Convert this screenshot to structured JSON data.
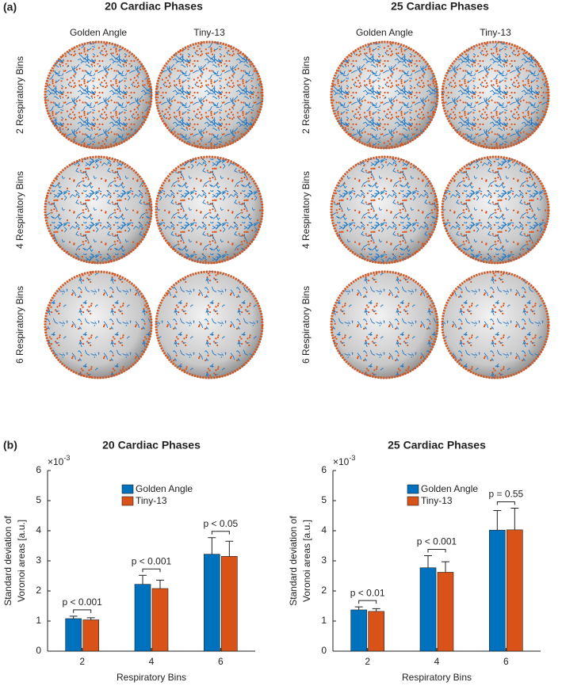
{
  "panel_a": {
    "label": "(a)",
    "groups": [
      {
        "title": "20 Cardiac Phases",
        "columns": [
          "Golden Angle",
          "Tiny-13"
        ],
        "rows": [
          "2 Respiratory Bins",
          "4 Respiratory Bins",
          "6 Respiratory Bins"
        ]
      },
      {
        "title": "25 Cardiac Phases",
        "columns": [
          "Golden Angle",
          "Tiny-13"
        ],
        "rows": [
          "2 Respiratory Bins",
          "4 Respiratory Bins",
          "6 Respiratory Bins"
        ]
      }
    ]
  },
  "panel_b": {
    "label": "(b)"
  },
  "chart_data": [
    {
      "type": "bar",
      "title": "20 Cardiac Phases",
      "xlabel": "Respiratory Bins",
      "ylabel": [
        "Standard deviation of",
        "Voronoi areas [a.u.]"
      ],
      "y_scale_base": "×10",
      "y_scale_exponent": "-3",
      "categories": [
        "2",
        "4",
        "6"
      ],
      "series": [
        {
          "name": "Golden Angle",
          "color": "#0072bd",
          "values": [
            1.08,
            2.22,
            3.22
          ],
          "errors": [
            0.08,
            0.3,
            0.55
          ]
        },
        {
          "name": "Tiny-13",
          "color": "#d95319",
          "values": [
            1.04,
            2.08,
            3.15
          ],
          "errors": [
            0.07,
            0.28,
            0.5
          ]
        }
      ],
      "annotations": [
        "p < 0.001",
        "p < 0.001",
        "p < 0.05"
      ],
      "ylim": [
        0,
        6
      ],
      "yticks": [
        0,
        1,
        2,
        3,
        4,
        5,
        6
      ],
      "legend": "upper center"
    },
    {
      "type": "bar",
      "title": "25 Cardiac Phases",
      "xlabel": "Respiratory Bins",
      "ylabel": [
        "Standard deviation of",
        "Voronoi areas [a.u.]"
      ],
      "y_scale_base": "×10",
      "y_scale_exponent": "-3",
      "categories": [
        "2",
        "4",
        "6"
      ],
      "series": [
        {
          "name": "Golden Angle",
          "color": "#0072bd",
          "values": [
            1.37,
            2.77,
            4.02
          ],
          "errors": [
            0.1,
            0.4,
            0.65
          ]
        },
        {
          "name": "Tiny-13",
          "color": "#d95319",
          "values": [
            1.32,
            2.62,
            4.03
          ],
          "errors": [
            0.09,
            0.35,
            0.72
          ]
        }
      ],
      "annotations": [
        "p < 0.01",
        "p < 0.001",
        "p = 0.55"
      ],
      "ylim": [
        0,
        6
      ],
      "yticks": [
        0,
        1,
        2,
        3,
        4,
        5,
        6
      ],
      "legend": "upper center"
    }
  ]
}
